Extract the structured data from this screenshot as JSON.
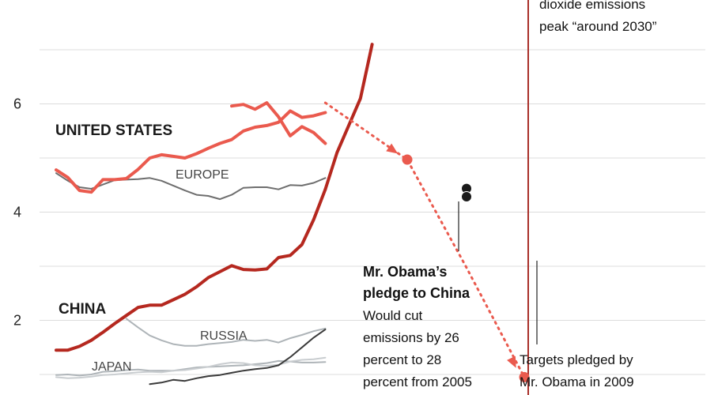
{
  "chart_data": {
    "type": "line",
    "title": "",
    "xlabel": "",
    "ylabel": "",
    "ylim": [
      0.8,
      8
    ],
    "yticks": [
      2,
      4,
      6
    ],
    "grid": true,
    "colors": {
      "united_states": "#ea5a4e",
      "china": "#b5281f",
      "europe": "#6e6e6e",
      "russia": "#aeb4b8",
      "japan": "#aeb4b8",
      "other": "#3a3a3a",
      "pledge": "#ea5a4e",
      "china_pledge_line": "#a9302a"
    },
    "series": [
      {
        "name": "UNITED STATES",
        "x": [
          1990,
          1991,
          1992,
          1993,
          1994,
          1995,
          1996,
          1997,
          1998,
          1999,
          2000,
          2001,
          2002,
          2003,
          2004,
          2005,
          2006,
          2007,
          2008,
          2009,
          2010,
          2011,
          2012,
          2013
        ],
        "values": [
          4.78,
          4.64,
          4.4,
          4.37,
          4.6,
          4.6,
          4.62,
          4.79,
          5.0,
          5.06,
          5.03,
          5.0,
          5.08,
          5.18,
          5.27,
          5.34,
          5.5,
          5.57,
          5.6,
          5.66,
          5.87,
          5.75,
          5.78,
          5.84
        ]
      },
      {
        "name": "",
        "x": [
          2005,
          2006,
          2007,
          2008,
          2009,
          2010,
          2011,
          2012,
          2013
        ],
        "values": [
          5.96,
          5.99,
          5.9,
          6.02,
          5.76,
          5.41,
          5.58,
          5.47,
          5.27
        ]
      },
      {
        "name": "CHINA",
        "x": [
          1990,
          1991,
          1992,
          1993,
          1994,
          1995,
          1996,
          1997,
          1998,
          1999,
          2000,
          2001,
          2002,
          2003,
          2004,
          2005,
          2006,
          2007,
          2008,
          2009,
          2010,
          2011,
          2012,
          2013
        ],
        "values": [
          1.45,
          1.45,
          1.52,
          1.63,
          1.78,
          1.94,
          2.09,
          2.24,
          2.28,
          2.28,
          2.38,
          2.48,
          2.62,
          2.79,
          2.9,
          3.01,
          2.94,
          2.93,
          2.95,
          3.16,
          3.2,
          3.4,
          3.86,
          4.42
        ]
      },
      {
        "name": "EUROPE",
        "x": [
          1990,
          1991,
          1992,
          1993,
          1994,
          1995,
          1996,
          1997,
          1998,
          1999,
          2000,
          2001,
          2002,
          2003,
          2004,
          2005,
          2006,
          2007,
          2008,
          2009,
          2010,
          2011,
          2012,
          2013
        ],
        "values": [
          4.72,
          4.58,
          4.46,
          4.43,
          4.51,
          4.59,
          4.6,
          4.61,
          4.63,
          4.58,
          4.49,
          4.4,
          4.32,
          4.3,
          4.24,
          4.32,
          4.45,
          4.46,
          4.46,
          4.42,
          4.5,
          4.49,
          4.54,
          4.63
        ]
      },
      {
        "name": "RUSSIA",
        "x": [
          1996,
          1997,
          1998,
          1999,
          2000,
          2001,
          2002,
          2003,
          2004,
          2005,
          2006,
          2007,
          2008,
          2009,
          2010,
          2011,
          2012,
          2013
        ],
        "values": [
          2.03,
          1.87,
          1.72,
          1.63,
          1.56,
          1.53,
          1.53,
          1.56,
          1.58,
          1.6,
          1.64,
          1.62,
          1.64,
          1.59,
          1.67,
          1.73,
          1.8,
          1.85
        ]
      },
      {
        "name": "JAPAN",
        "x": [
          1990,
          1991,
          1992,
          1993,
          1994,
          1995,
          1996,
          1997,
          1998,
          1999,
          2000,
          2001,
          2002,
          2003,
          2004,
          2005,
          2006,
          2007,
          2008,
          2009,
          2010,
          2011,
          2012,
          2013
        ],
        "values": [
          0.99,
          1.0,
          0.98,
          1.0,
          1.05,
          1.06,
          1.08,
          1.09,
          1.07,
          1.07,
          1.07,
          1.1,
          1.13,
          1.14,
          1.15,
          1.16,
          1.17,
          1.19,
          1.21,
          1.25,
          1.24,
          1.22,
          1.22,
          1.23
        ]
      },
      {
        "name": "",
        "x": [
          1998,
          1999,
          2000,
          2001,
          2002,
          2003,
          2004,
          2005,
          2006,
          2007,
          2008,
          2009,
          2010,
          2011,
          2012,
          2013
        ],
        "values": [
          0.82,
          0.85,
          0.9,
          0.88,
          0.93,
          0.97,
          0.99,
          1.03,
          1.07,
          1.1,
          1.12,
          1.17,
          1.32,
          1.5,
          1.68,
          1.83
        ]
      },
      {
        "name": "",
        "x": [
          1990,
          1991,
          1992,
          1993,
          1994,
          1995,
          1996,
          1997,
          1998,
          1999,
          2000,
          2001,
          2002,
          2003,
          2004,
          2005,
          2006,
          2007,
          2008,
          2009,
          2010,
          2011,
          2012,
          2013
        ],
        "values": [
          0.95,
          0.93,
          0.94,
          0.96,
          0.99,
          1.0,
          1.02,
          1.04,
          1.05,
          1.04,
          1.07,
          1.08,
          1.11,
          1.14,
          1.19,
          1.22,
          1.21,
          1.17,
          1.16,
          1.18,
          1.24,
          1.27,
          1.28,
          1.31
        ]
      }
    ],
    "china_growth": {
      "x": [
        2013,
        2014,
        2015,
        2016,
        2017
      ],
      "values": [
        4.42,
        5.1,
        5.6,
        6.1,
        7.1
      ]
    },
    "pledge_path": {
      "x": [
        2013,
        2020,
        2025,
        2030
      ],
      "values": [
        6.02,
        4.97,
        3.0,
        0.95
      ]
    },
    "pledge_points": [
      {
        "x": 2020,
        "value": 4.97,
        "color": "#ea5a4e"
      },
      {
        "x": 2030,
        "value": 0.95,
        "color": "#ea5a4e"
      }
    ],
    "obama_points": [
      {
        "x": 2025,
        "value": 4.45
      },
      {
        "x": 2025,
        "value": 4.3
      }
    ],
    "china_peak_year": 2030,
    "labels": {
      "united_states": "UNITED STATES",
      "china": "CHINA",
      "europe": "EUROPE",
      "russia": "RUSSIA",
      "japan": "JAPAN"
    },
    "annotations": {
      "obama_china_title": [
        "Mr. Obama’s",
        "pledge to China"
      ],
      "obama_china_body": [
        "Would cut",
        "emissions by 26",
        "percent to 28",
        "percent from 2005"
      ],
      "obama_2009": [
        "Targets pledged by",
        "Mr. Obama in 2009"
      ],
      "china_peak": [
        "dioxide emissions",
        "peak “around 2030”"
      ]
    }
  }
}
